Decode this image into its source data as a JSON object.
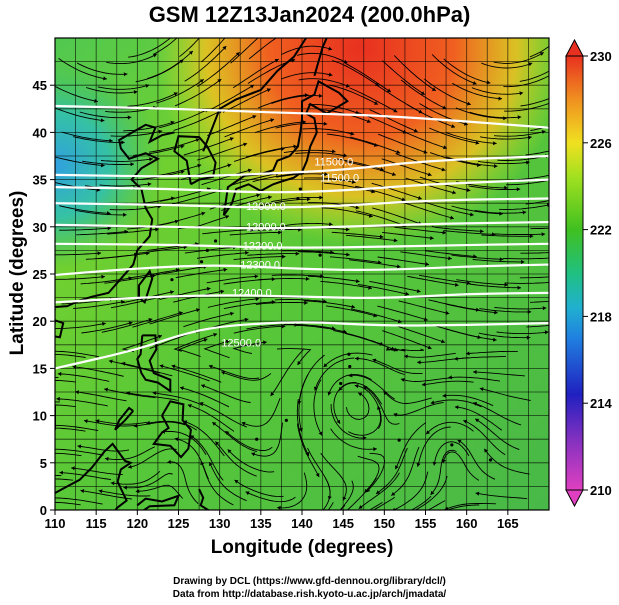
{
  "title": "GSM 12Z13Jan2024 (200.0hPa)",
  "xlabel": "Longitude (degrees)",
  "ylabel": "Latitude  (degrees)",
  "credits": [
    "Drawing by DCL (https://www.gfd-dennou.org/library/dcl/)",
    "Data from http://database.rish.kyoto-u.ac.jp/arch/jmadata/"
  ],
  "map": {
    "xlim": [
      110,
      170
    ],
    "ylim": [
      0,
      50
    ],
    "x_ticks": [
      "110",
      "115",
      "120",
      "125",
      "130",
      "135",
      "140",
      "145",
      "150",
      "155",
      "160",
      "165"
    ],
    "y_ticks": [
      "0",
      "5",
      "10",
      "15",
      "20",
      "25",
      "30",
      "35",
      "40",
      "45"
    ],
    "colorbar": {
      "range": [
        210,
        230
      ],
      "ticks": [
        "210",
        "214",
        "218",
        "222",
        "226",
        "230"
      ],
      "colors": [
        "#e040c0",
        "#2020c0",
        "#20a0e0",
        "#20c0a0",
        "#40c020",
        "#a0e020",
        "#f0e020",
        "#f09020",
        "#e83020"
      ]
    },
    "contour_labels": [
      "11500.0",
      "11500.0",
      "12000.0",
      "12000.0",
      "12200.0",
      "12300.0",
      "12400.0",
      "12500.0"
    ]
  }
}
